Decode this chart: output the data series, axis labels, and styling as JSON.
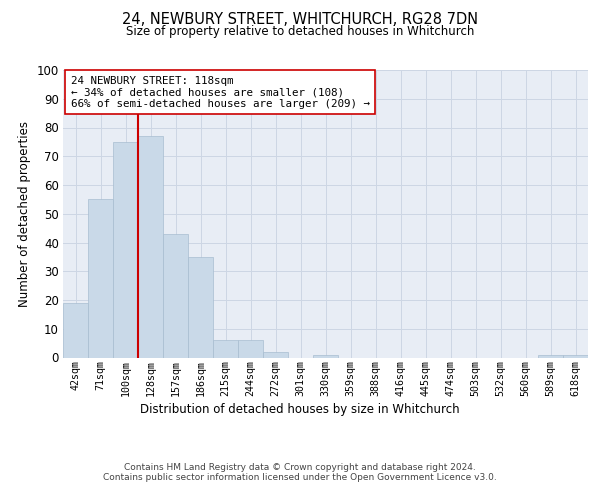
{
  "title": "24, NEWBURY STREET, WHITCHURCH, RG28 7DN",
  "subtitle": "Size of property relative to detached houses in Whitchurch",
  "xlabel": "Distribution of detached houses by size in Whitchurch",
  "ylabel": "Number of detached properties",
  "categories": [
    "42sqm",
    "71sqm",
    "100sqm",
    "128sqm",
    "157sqm",
    "186sqm",
    "215sqm",
    "244sqm",
    "272sqm",
    "301sqm",
    "330sqm",
    "359sqm",
    "388sqm",
    "416sqm",
    "445sqm",
    "474sqm",
    "503sqm",
    "532sqm",
    "560sqm",
    "589sqm",
    "618sqm"
  ],
  "values": [
    19,
    55,
    75,
    77,
    43,
    35,
    6,
    6,
    2,
    0,
    1,
    0,
    0,
    0,
    0,
    0,
    0,
    0,
    0,
    1,
    1
  ],
  "bar_color": "#c9d9e8",
  "bar_edge_color": "#a8bdd0",
  "grid_color": "#cdd6e4",
  "background_color": "#e8edf5",
  "marker_color": "#cc0000",
  "annotation_text": "24 NEWBURY STREET: 118sqm\n← 34% of detached houses are smaller (108)\n66% of semi-detached houses are larger (209) →",
  "annotation_box_color": "#ffffff",
  "annotation_box_edge": "#cc0000",
  "footnote": "Contains HM Land Registry data © Crown copyright and database right 2024.\nContains public sector information licensed under the Open Government Licence v3.0.",
  "ylim": [
    0,
    100
  ],
  "yticks": [
    0,
    10,
    20,
    30,
    40,
    50,
    60,
    70,
    80,
    90,
    100
  ]
}
